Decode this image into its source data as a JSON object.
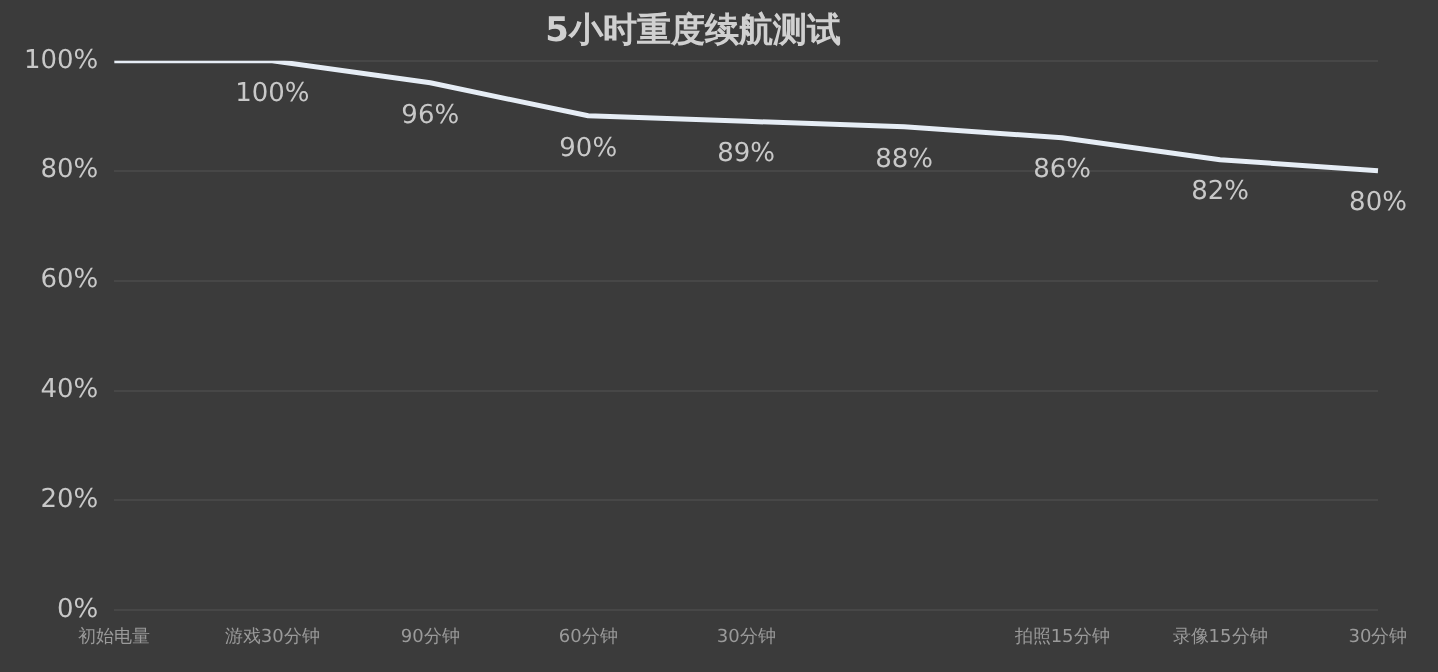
{
  "chart_data": {
    "type": "line",
    "title": "5小时重度续航测试",
    "categories": [
      "初始电量",
      "游戏30分钟",
      "90分钟",
      "60分钟",
      "30分钟",
      null,
      "拍照15分钟",
      "录像15分钟",
      "30分钟"
    ],
    "series": [
      {
        "color": "#e6edf5",
        "values": [
          100,
          100,
          96,
          90,
          89,
          88,
          86,
          82,
          80
        ],
        "value_labels": [
          null,
          "100%",
          "96%",
          "90%",
          "89%",
          "88%",
          "86%",
          "82%",
          "80%"
        ]
      }
    ],
    "ylim": [
      0,
      100
    ],
    "yticks": [
      {
        "value": 0,
        "label": "0%"
      },
      {
        "value": 20,
        "label": "20%"
      },
      {
        "value": 40,
        "label": "40%"
      },
      {
        "value": 60,
        "label": "60%"
      },
      {
        "value": 80,
        "label": "80%"
      },
      {
        "value": 100,
        "label": "100%"
      }
    ],
    "grid": "y",
    "legend": false,
    "marker": "none",
    "line_style": "solid"
  }
}
